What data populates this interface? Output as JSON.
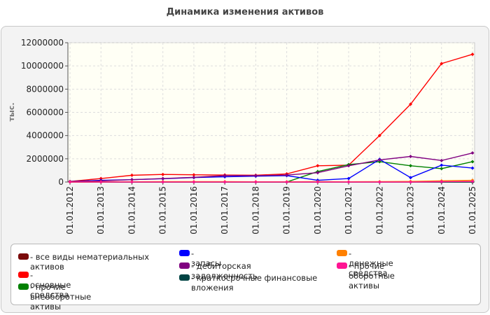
{
  "chart_data": {
    "type": "line",
    "title": "Динамика изменения активов",
    "ylabel": "тыс.",
    "xlabel": "",
    "ylim": [
      0,
      12000000
    ],
    "yticks": [
      0,
      2000000,
      4000000,
      6000000,
      8000000,
      10000000,
      12000000
    ],
    "grid": true,
    "legend_position": "bottom",
    "categories": [
      "01.01.2012",
      "01.01.2013",
      "01.01.2014",
      "01.01.2015",
      "01.01.2016",
      "01.01.2017",
      "01.01.2018",
      "01.01.2019",
      "01.01.2020",
      "01.01.2021",
      "01.01.2022",
      "01.01.2023",
      "01.01.2024",
      "01.01.2025"
    ],
    "series": [
      {
        "name": "- все виды нематериальных активов",
        "color": "#7a0a0a",
        "values": [
          0,
          0,
          0,
          0,
          0,
          0,
          0,
          0,
          0,
          0,
          0,
          0,
          0,
          0
        ]
      },
      {
        "name": "- основные средства",
        "color": "#ff0000",
        "values": [
          50000,
          300000,
          580000,
          650000,
          620000,
          600000,
          580000,
          700000,
          1400000,
          1450000,
          4000000,
          6700000,
          10200000,
          11000000
        ]
      },
      {
        "name": "- прочие внеоборотные активы",
        "color": "#008000",
        "values": [
          0,
          0,
          0,
          0,
          0,
          0,
          0,
          0,
          900000,
          1500000,
          1750000,
          1400000,
          1150000,
          1750000
        ]
      },
      {
        "name": "- запасы",
        "color": "#0000ff",
        "values": [
          30000,
          150000,
          200000,
          280000,
          380000,
          450000,
          500000,
          550000,
          150000,
          300000,
          1950000,
          380000,
          1450000,
          1200000
        ]
      },
      {
        "name": "- дебиторская задолженность",
        "color": "#800080",
        "values": [
          20000,
          100000,
          200000,
          300000,
          400000,
          550000,
          550000,
          600000,
          800000,
          1400000,
          1900000,
          2200000,
          1850000,
          2500000
        ]
      },
      {
        "name": "- краткосрочные финансовые вложения",
        "color": "#004444",
        "values": [
          0,
          0,
          0,
          0,
          0,
          0,
          0,
          0,
          0,
          0,
          0,
          0,
          0,
          0
        ]
      },
      {
        "name": "- денежные средства",
        "color": "#ff8000",
        "values": [
          0,
          0,
          20000,
          30000,
          30000,
          30000,
          20000,
          20000,
          30000,
          20000,
          30000,
          50000,
          100000,
          150000
        ]
      },
      {
        "name": "- прочие оборотные активы",
        "color": "#ff1493",
        "values": [
          0,
          0,
          0,
          0,
          0,
          0,
          0,
          0,
          0,
          0,
          0,
          0,
          30000,
          50000
        ]
      }
    ]
  }
}
